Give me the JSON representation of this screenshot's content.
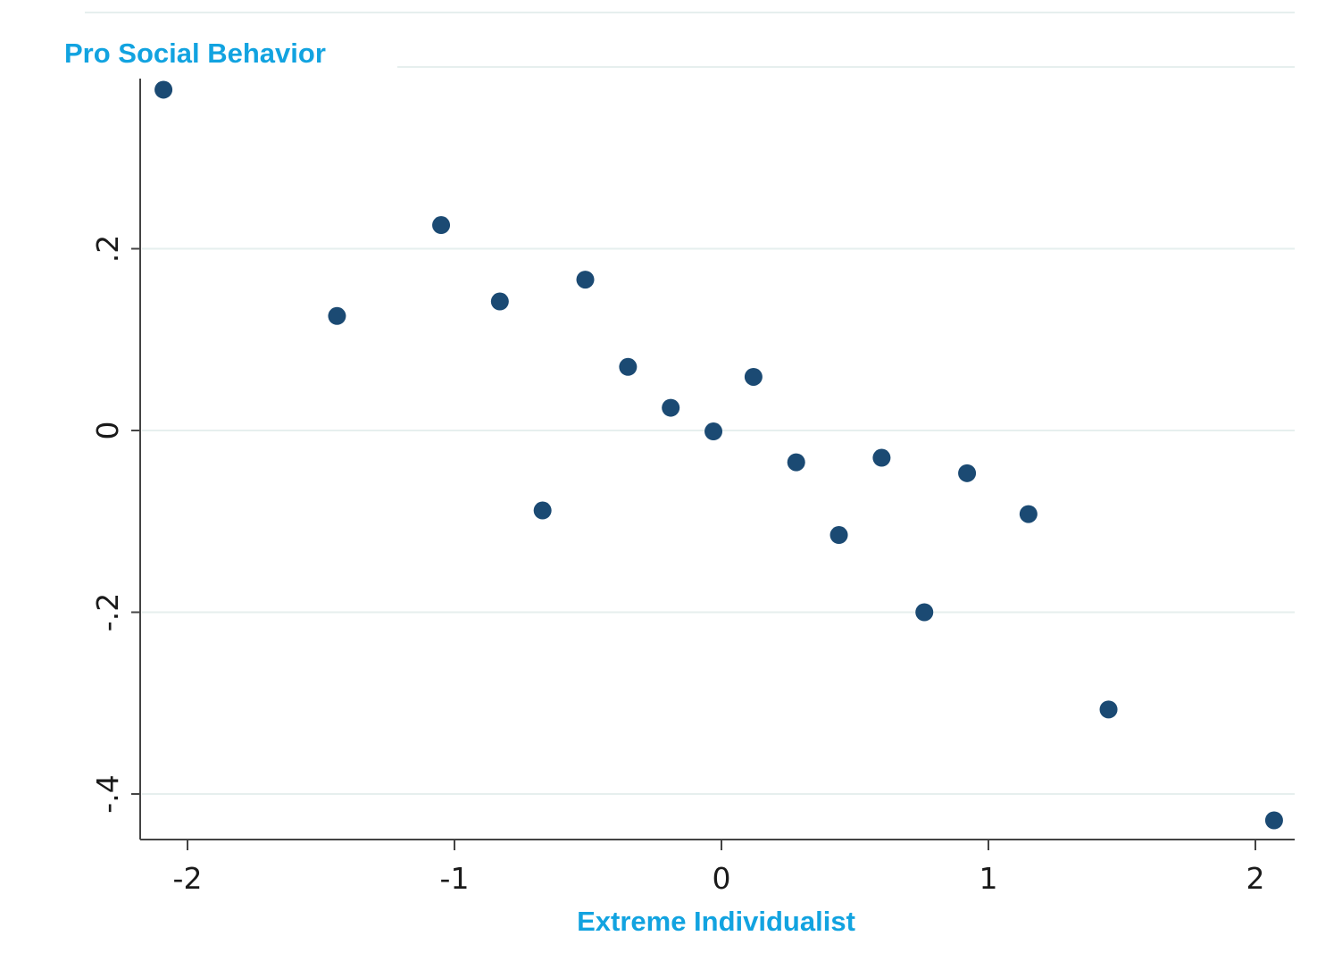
{
  "chart_data": {
    "type": "scatter",
    "title": "",
    "ylabel": "Pro Social Behavior",
    "xlabel": "Extreme Individualist",
    "xlim": [
      -2.18,
      2.15
    ],
    "ylim": [
      -0.45,
      0.385
    ],
    "xticks": [
      -2,
      -1,
      0,
      1,
      2
    ],
    "xtick_labels": [
      "-2",
      "-1",
      "0",
      "1",
      "2"
    ],
    "yticks": [
      -0.4,
      -0.2,
      0,
      0.2
    ],
    "ytick_labels": [
      "-.4",
      "-.2",
      "0",
      ".2"
    ],
    "grid": true,
    "points": [
      {
        "x": -2.09,
        "y": 0.375
      },
      {
        "x": -1.44,
        "y": 0.126
      },
      {
        "x": -1.05,
        "y": 0.226
      },
      {
        "x": -0.83,
        "y": 0.142
      },
      {
        "x": -0.67,
        "y": -0.088
      },
      {
        "x": -0.51,
        "y": 0.166
      },
      {
        "x": -0.35,
        "y": 0.07
      },
      {
        "x": -0.19,
        "y": 0.025
      },
      {
        "x": -0.03,
        "y": -0.001
      },
      {
        "x": 0.12,
        "y": 0.059
      },
      {
        "x": 0.28,
        "y": -0.035
      },
      {
        "x": 0.44,
        "y": -0.115
      },
      {
        "x": 0.6,
        "y": -0.03
      },
      {
        "x": 0.76,
        "y": -0.2
      },
      {
        "x": 0.92,
        "y": -0.047
      },
      {
        "x": 1.15,
        "y": -0.092
      },
      {
        "x": 1.45,
        "y": -0.307
      },
      {
        "x": 2.07,
        "y": -0.429
      }
    ]
  },
  "colors": {
    "marker": "#1b4a73",
    "axis_title": "#12a3e0",
    "grid": "#e6efee",
    "axis": "#444444"
  }
}
